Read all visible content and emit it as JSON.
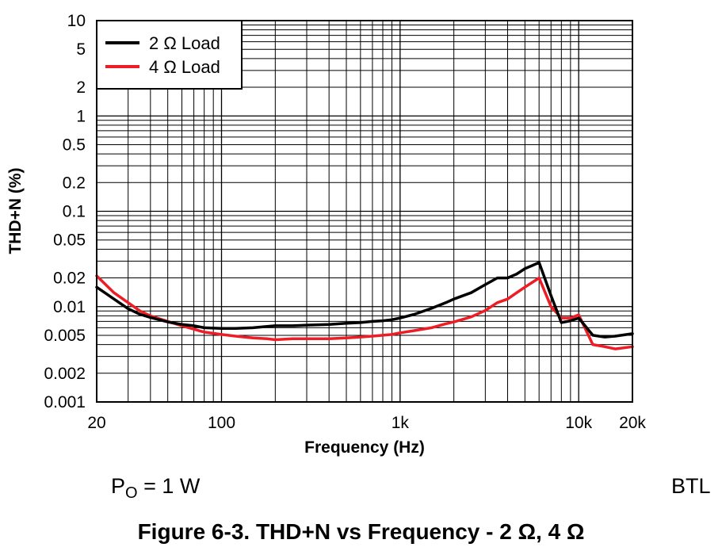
{
  "chart_data": {
    "type": "line",
    "title": "",
    "xlabel": "Frequency (Hz)",
    "ylabel": "THD+N (%)",
    "x_scale": "log",
    "y_scale": "log",
    "xlim": [
      20,
      20000
    ],
    "ylim": [
      0.001,
      10
    ],
    "grid": true,
    "legend_position": "top-left",
    "x_ticks": [
      {
        "value": 20,
        "label": "20"
      },
      {
        "value": 100,
        "label": "100"
      },
      {
        "value": 1000,
        "label": "1k"
      },
      {
        "value": 10000,
        "label": "10k"
      },
      {
        "value": 20000,
        "label": "20k"
      }
    ],
    "y_ticks": [
      {
        "value": 10,
        "label": "10"
      },
      {
        "value": 5,
        "label": "5"
      },
      {
        "value": 2,
        "label": "2"
      },
      {
        "value": 1,
        "label": "1"
      },
      {
        "value": 0.5,
        "label": "0.5"
      },
      {
        "value": 0.2,
        "label": "0.2"
      },
      {
        "value": 0.1,
        "label": "0.1"
      },
      {
        "value": 0.05,
        "label": "0.05"
      },
      {
        "value": 0.02,
        "label": "0.02"
      },
      {
        "value": 0.01,
        "label": "0.01"
      },
      {
        "value": 0.005,
        "label": "0.005"
      },
      {
        "value": 0.002,
        "label": "0.002"
      },
      {
        "value": 0.001,
        "label": "0.001"
      }
    ],
    "series": [
      {
        "name": "2 Ω Load",
        "color": "#000000",
        "x": [
          20,
          25,
          30,
          35,
          40,
          50,
          60,
          70,
          80,
          100,
          120,
          150,
          180,
          200,
          250,
          300,
          400,
          500,
          600,
          700,
          800,
          900,
          1000,
          1200,
          1500,
          1800,
          2000,
          2500,
          3000,
          3500,
          4000,
          4500,
          5000,
          5500,
          6000,
          7000,
          8000,
          9000,
          10000,
          12000,
          14000,
          16000,
          20000
        ],
        "y": [
          0.016,
          0.012,
          0.0095,
          0.0083,
          0.0077,
          0.0069,
          0.0065,
          0.0063,
          0.006,
          0.0059,
          0.0059,
          0.006,
          0.0062,
          0.0063,
          0.0063,
          0.0064,
          0.0065,
          0.0067,
          0.0068,
          0.007,
          0.0071,
          0.0073,
          0.0076,
          0.0083,
          0.0096,
          0.011,
          0.012,
          0.014,
          0.017,
          0.02,
          0.02,
          0.022,
          0.025,
          0.027,
          0.029,
          0.013,
          0.0068,
          0.0071,
          0.0076,
          0.005,
          0.0048,
          0.0049,
          0.0052
        ]
      },
      {
        "name": "4 Ω Load",
        "color": "#ee1c25",
        "x": [
          20,
          25,
          30,
          35,
          40,
          50,
          60,
          70,
          80,
          100,
          120,
          150,
          180,
          200,
          250,
          300,
          400,
          500,
          600,
          700,
          800,
          900,
          1000,
          1200,
          1500,
          1800,
          2000,
          2500,
          3000,
          3500,
          4000,
          4500,
          5000,
          5500,
          6000,
          7000,
          8000,
          9000,
          10000,
          12000,
          14000,
          16000,
          20000
        ],
        "y": [
          0.021,
          0.014,
          0.011,
          0.009,
          0.008,
          0.007,
          0.0063,
          0.0058,
          0.0054,
          0.0051,
          0.0049,
          0.0047,
          0.0046,
          0.0045,
          0.0046,
          0.0046,
          0.0046,
          0.0047,
          0.0048,
          0.0049,
          0.005,
          0.0051,
          0.0053,
          0.0056,
          0.006,
          0.0066,
          0.0069,
          0.0078,
          0.0091,
          0.011,
          0.012,
          0.014,
          0.016,
          0.018,
          0.02,
          0.01,
          0.0076,
          0.0076,
          0.0082,
          0.004,
          0.0038,
          0.0036,
          0.0038
        ]
      }
    ]
  },
  "conditions": {
    "left_prefix": "P",
    "left_subscript": "O",
    "left_value": " = 1 W",
    "right": "BTL"
  },
  "caption": "Figure 6-3. THD+N vs Frequency - 2 Ω, 4 Ω"
}
